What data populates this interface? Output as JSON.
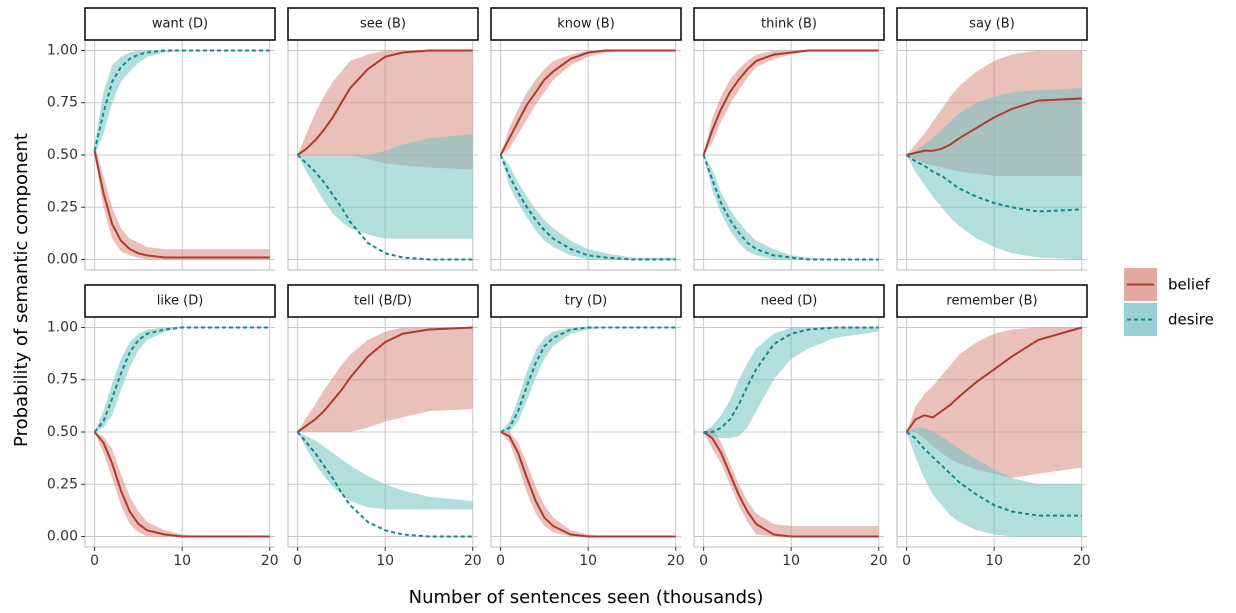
{
  "chart_data": {
    "type": "line",
    "xlabel": "Number of sentences seen (thousands)",
    "ylabel": "Probability of semantic component",
    "xlim": [
      -1.1,
      20.6
    ],
    "xticks": [
      0,
      10,
      20
    ],
    "ylim": [
      -0.05,
      1.05
    ],
    "yticks": [
      {
        "value": 0,
        "label": "0.00"
      },
      {
        "value": 0.25,
        "label": "0.25"
      },
      {
        "value": 0.5,
        "label": "0.50"
      },
      {
        "value": 0.75,
        "label": "0.75"
      },
      {
        "value": 1,
        "label": "1.00"
      }
    ],
    "grid": true,
    "legend_position": "right",
    "series": [
      {
        "name": "belief",
        "color": "#b03a2e",
        "band_color": "#d98c84",
        "dashed": false
      },
      {
        "name": "desire",
        "color": "#12898a",
        "band_color": "#74c2c2",
        "dashed": true
      }
    ],
    "x": [
      0,
      1,
      2,
      3,
      4,
      5,
      6,
      8,
      10,
      12,
      15,
      20
    ],
    "panels": [
      {
        "title": "want (D)",
        "series": [
          {
            "values": [
              0.52,
              0.32,
              0.17,
              0.09,
              0.05,
              0.03,
              0.02,
              0.01,
              0.01,
              0.01,
              0.01,
              0.01
            ],
            "lower": [
              0.5,
              0.25,
              0.1,
              0.04,
              0.02,
              0.01,
              0,
              0,
              0,
              0,
              0,
              0
            ],
            "upper": [
              0.55,
              0.4,
              0.25,
              0.15,
              0.1,
              0.08,
              0.06,
              0.05,
              0.05,
              0.05,
              0.05,
              0.05
            ]
          },
          {
            "values": [
              0.52,
              0.7,
              0.85,
              0.92,
              0.96,
              0.98,
              0.99,
              1,
              1,
              1,
              1,
              1
            ],
            "lower": [
              0.5,
              0.6,
              0.75,
              0.85,
              0.9,
              0.94,
              0.97,
              0.99,
              1,
              1,
              1,
              1
            ],
            "upper": [
              0.55,
              0.8,
              0.93,
              0.97,
              0.99,
              1,
              1,
              1,
              1,
              1,
              1,
              1
            ]
          }
        ]
      },
      {
        "title": "see (B)",
        "series": [
          {
            "values": [
              0.5,
              0.53,
              0.57,
              0.62,
              0.68,
              0.75,
              0.82,
              0.91,
              0.97,
              0.99,
              1,
              1
            ],
            "lower": [
              0.5,
              0.5,
              0.5,
              0.5,
              0.5,
              0.5,
              0.5,
              0.48,
              0.46,
              0.45,
              0.44,
              0.43
            ],
            "upper": [
              0.5,
              0.6,
              0.7,
              0.78,
              0.85,
              0.9,
              0.95,
              0.98,
              1,
              1,
              1,
              1
            ]
          },
          {
            "values": [
              0.5,
              0.46,
              0.42,
              0.37,
              0.31,
              0.25,
              0.18,
              0.08,
              0.03,
              0.01,
              0,
              0
            ],
            "lower": [
              0.5,
              0.42,
              0.35,
              0.28,
              0.22,
              0.18,
              0.15,
              0.12,
              0.1,
              0.1,
              0.1,
              0.1
            ],
            "upper": [
              0.5,
              0.5,
              0.5,
              0.5,
              0.5,
              0.5,
              0.5,
              0.5,
              0.52,
              0.55,
              0.58,
              0.6
            ]
          }
        ]
      },
      {
        "title": "know (B)",
        "series": [
          {
            "values": [
              0.5,
              0.58,
              0.66,
              0.74,
              0.8,
              0.86,
              0.9,
              0.96,
              0.99,
              1,
              1,
              1
            ],
            "lower": [
              0.5,
              0.53,
              0.6,
              0.67,
              0.74,
              0.8,
              0.86,
              0.93,
              0.97,
              0.99,
              1,
              1
            ],
            "upper": [
              0.5,
              0.63,
              0.72,
              0.8,
              0.86,
              0.91,
              0.95,
              0.98,
              1,
              1,
              1,
              1
            ]
          },
          {
            "values": [
              0.5,
              0.4,
              0.32,
              0.25,
              0.19,
              0.14,
              0.1,
              0.05,
              0.02,
              0.01,
              0,
              0
            ],
            "lower": [
              0.5,
              0.35,
              0.27,
              0.2,
              0.14,
              0.09,
              0.06,
              0.02,
              0,
              0,
              0,
              0
            ],
            "upper": [
              0.5,
              0.45,
              0.37,
              0.3,
              0.24,
              0.19,
              0.15,
              0.09,
              0.05,
              0.03,
              0.01,
              0.01
            ]
          }
        ]
      },
      {
        "title": "think (B)",
        "series": [
          {
            "values": [
              0.5,
              0.62,
              0.72,
              0.8,
              0.86,
              0.91,
              0.95,
              0.98,
              0.99,
              1,
              1,
              1
            ],
            "lower": [
              0.5,
              0.56,
              0.66,
              0.74,
              0.81,
              0.87,
              0.92,
              0.96,
              0.98,
              1,
              1,
              1
            ],
            "upper": [
              0.5,
              0.68,
              0.78,
              0.86,
              0.91,
              0.95,
              0.98,
              1,
              1,
              1,
              1,
              1
            ]
          },
          {
            "values": [
              0.5,
              0.38,
              0.27,
              0.19,
              0.13,
              0.08,
              0.05,
              0.02,
              0.01,
              0,
              0,
              0
            ],
            "lower": [
              0.5,
              0.33,
              0.22,
              0.14,
              0.08,
              0.04,
              0.02,
              0,
              0,
              0,
              0,
              0
            ],
            "upper": [
              0.5,
              0.43,
              0.32,
              0.24,
              0.18,
              0.13,
              0.09,
              0.05,
              0.02,
              0.01,
              0,
              0
            ]
          }
        ]
      },
      {
        "title": "say (B)",
        "series": [
          {
            "values": [
              0.5,
              0.51,
              0.52,
              0.52,
              0.53,
              0.55,
              0.58,
              0.63,
              0.68,
              0.72,
              0.76,
              0.77
            ],
            "lower": [
              0.5,
              0.48,
              0.46,
              0.45,
              0.44,
              0.43,
              0.42,
              0.41,
              0.4,
              0.4,
              0.4,
              0.4
            ],
            "upper": [
              0.5,
              0.55,
              0.6,
              0.66,
              0.72,
              0.78,
              0.83,
              0.9,
              0.95,
              0.98,
              1,
              1
            ]
          },
          {
            "values": [
              0.5,
              0.47,
              0.45,
              0.42,
              0.4,
              0.37,
              0.34,
              0.3,
              0.27,
              0.25,
              0.23,
              0.24
            ],
            "lower": [
              0.5,
              0.42,
              0.36,
              0.3,
              0.25,
              0.2,
              0.16,
              0.1,
              0.06,
              0.03,
              0.01,
              0
            ],
            "upper": [
              0.5,
              0.52,
              0.55,
              0.58,
              0.62,
              0.66,
              0.7,
              0.75,
              0.78,
              0.8,
              0.81,
              0.82
            ]
          }
        ]
      },
      {
        "title": "like (D)",
        "series": [
          {
            "values": [
              0.5,
              0.45,
              0.35,
              0.22,
              0.12,
              0.06,
              0.03,
              0.01,
              0,
              0,
              0,
              0
            ],
            "lower": [
              0.5,
              0.4,
              0.28,
              0.15,
              0.06,
              0.02,
              0,
              0,
              0,
              0,
              0,
              0
            ],
            "upper": [
              0.5,
              0.48,
              0.42,
              0.3,
              0.19,
              0.12,
              0.07,
              0.03,
              0.01,
              0,
              0,
              0
            ]
          },
          {
            "values": [
              0.5,
              0.55,
              0.66,
              0.78,
              0.88,
              0.94,
              0.97,
              0.99,
              1,
              1,
              1,
              1
            ],
            "lower": [
              0.5,
              0.52,
              0.58,
              0.7,
              0.81,
              0.89,
              0.94,
              0.98,
              1,
              1,
              1,
              1
            ],
            "upper": [
              0.5,
              0.6,
              0.73,
              0.85,
              0.93,
              0.97,
              0.99,
              1,
              1,
              1,
              1,
              1
            ]
          }
        ]
      },
      {
        "title": "tell (B/D)",
        "series": [
          {
            "values": [
              0.5,
              0.53,
              0.56,
              0.6,
              0.65,
              0.7,
              0.76,
              0.86,
              0.93,
              0.97,
              0.99,
              1
            ],
            "lower": [
              0.5,
              0.5,
              0.5,
              0.5,
              0.5,
              0.5,
              0.5,
              0.52,
              0.55,
              0.57,
              0.6,
              0.61
            ],
            "upper": [
              0.5,
              0.57,
              0.63,
              0.7,
              0.76,
              0.82,
              0.87,
              0.94,
              0.98,
              1,
              1,
              1
            ]
          },
          {
            "values": [
              0.5,
              0.45,
              0.4,
              0.34,
              0.28,
              0.21,
              0.15,
              0.07,
              0.03,
              0.01,
              0,
              0
            ],
            "lower": [
              0.5,
              0.42,
              0.35,
              0.29,
              0.24,
              0.2,
              0.17,
              0.14,
              0.13,
              0.13,
              0.13,
              0.13
            ],
            "upper": [
              0.5,
              0.48,
              0.46,
              0.43,
              0.4,
              0.37,
              0.34,
              0.29,
              0.25,
              0.22,
              0.19,
              0.17
            ]
          }
        ]
      },
      {
        "title": "try (D)",
        "series": [
          {
            "values": [
              0.5,
              0.48,
              0.4,
              0.28,
              0.17,
              0.09,
              0.05,
              0.01,
              0,
              0,
              0,
              0
            ],
            "lower": [
              0.5,
              0.45,
              0.34,
              0.21,
              0.11,
              0.05,
              0.02,
              0,
              0,
              0,
              0,
              0
            ],
            "upper": [
              0.5,
              0.5,
              0.45,
              0.35,
              0.24,
              0.15,
              0.09,
              0.03,
              0.01,
              0,
              0,
              0
            ]
          },
          {
            "values": [
              0.5,
              0.52,
              0.6,
              0.72,
              0.83,
              0.91,
              0.95,
              0.99,
              1,
              1,
              1,
              1
            ],
            "lower": [
              0.5,
              0.5,
              0.55,
              0.65,
              0.76,
              0.85,
              0.91,
              0.97,
              0.99,
              1,
              1,
              1
            ],
            "upper": [
              0.5,
              0.55,
              0.66,
              0.79,
              0.89,
              0.95,
              0.98,
              1,
              1,
              1,
              1,
              1
            ]
          }
        ]
      },
      {
        "title": "need (D)",
        "series": [
          {
            "values": [
              0.5,
              0.47,
              0.4,
              0.3,
              0.2,
              0.12,
              0.06,
              0.01,
              0,
              0,
              0,
              0
            ],
            "lower": [
              0.5,
              0.42,
              0.35,
              0.25,
              0.15,
              0.07,
              0.01,
              0,
              0,
              0,
              0,
              0
            ],
            "upper": [
              0.5,
              0.52,
              0.45,
              0.35,
              0.25,
              0.17,
              0.11,
              0.06,
              0.05,
              0.05,
              0.05,
              0.05
            ]
          },
          {
            "values": [
              0.5,
              0.5,
              0.52,
              0.56,
              0.63,
              0.72,
              0.8,
              0.92,
              0.97,
              0.99,
              1,
              1
            ],
            "lower": [
              0.5,
              0.48,
              0.47,
              0.47,
              0.48,
              0.52,
              0.6,
              0.75,
              0.85,
              0.9,
              0.95,
              0.98
            ],
            "upper": [
              0.5,
              0.53,
              0.58,
              0.65,
              0.75,
              0.83,
              0.9,
              0.97,
              1,
              1,
              1,
              1
            ]
          }
        ]
      },
      {
        "title": "remember (B)",
        "series": [
          {
            "values": [
              0.5,
              0.56,
              0.58,
              0.57,
              0.6,
              0.63,
              0.67,
              0.74,
              0.8,
              0.86,
              0.94,
              1
            ],
            "lower": [
              0.5,
              0.5,
              0.47,
              0.43,
              0.4,
              0.37,
              0.35,
              0.32,
              0.3,
              0.28,
              0.3,
              0.33
            ],
            "upper": [
              0.5,
              0.62,
              0.68,
              0.72,
              0.77,
              0.82,
              0.87,
              0.93,
              0.97,
              0.99,
              1,
              1
            ]
          },
          {
            "values": [
              0.5,
              0.47,
              0.42,
              0.38,
              0.34,
              0.3,
              0.26,
              0.2,
              0.15,
              0.12,
              0.1,
              0.1
            ],
            "lower": [
              0.5,
              0.38,
              0.28,
              0.2,
              0.15,
              0.1,
              0.07,
              0.03,
              0.01,
              0,
              0,
              0
            ],
            "upper": [
              0.5,
              0.52,
              0.52,
              0.5,
              0.48,
              0.45,
              0.42,
              0.37,
              0.32,
              0.28,
              0.25,
              0.25
            ]
          }
        ]
      }
    ]
  }
}
